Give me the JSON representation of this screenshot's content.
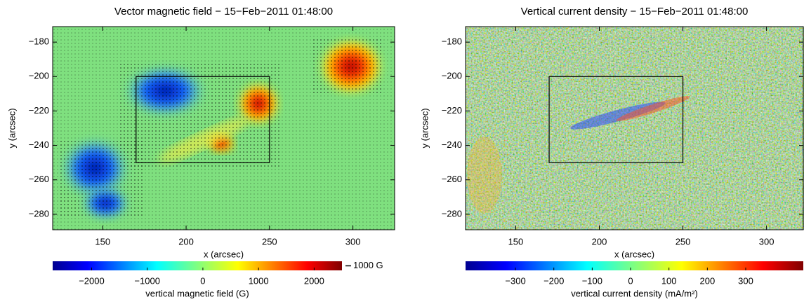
{
  "chart_data": [
    {
      "type": "image",
      "title": "Vector magnetic field − 15−Feb−2011 01:48:00",
      "xlabel": "x (arcsec)",
      "ylabel": "y (arcsec)",
      "xlim": [
        120,
        325
      ],
      "ylim": [
        -289,
        -171
      ],
      "xticks": [
        150,
        200,
        250,
        300
      ],
      "yticks": [
        {
          "value": -180,
          "label": "−180"
        },
        {
          "value": -200,
          "label": "−200"
        },
        {
          "value": -220,
          "label": "−220"
        },
        {
          "value": -240,
          "label": "−240"
        },
        {
          "value": -260,
          "label": "−260"
        },
        {
          "value": -280,
          "label": "−280"
        }
      ],
      "box": {
        "x": [
          170,
          250
        ],
        "y": [
          -250,
          -200
        ]
      },
      "colorbar": {
        "label": "vertical magnetic field (G)",
        "lim": [
          -2700,
          2500
        ],
        "ticks": [
          {
            "value": -2000,
            "label": "−2000"
          },
          {
            "value": -1000,
            "label": "−1000"
          },
          0,
          1000,
          2000
        ]
      },
      "arrow_scale": {
        "label": "1000 G"
      }
    },
    {
      "type": "image",
      "title": "Vertical current density − 15−Feb−2011 01:48:00",
      "xlabel": "x (arcsec)",
      "ylabel": "y (arcsec)",
      "xlim": [
        120,
        322
      ],
      "ylim": [
        -289,
        -171
      ],
      "xticks": [
        150,
        200,
        250,
        300
      ],
      "yticks": [
        {
          "value": -180,
          "label": "−180"
        },
        {
          "value": -200,
          "label": "−200"
        },
        {
          "value": -220,
          "label": "−220"
        },
        {
          "value": -240,
          "label": "−240"
        },
        {
          "value": -260,
          "label": "−260"
        },
        {
          "value": -280,
          "label": "−280"
        }
      ],
      "box": {
        "x": [
          170,
          250
        ],
        "y": [
          -250,
          -200
        ]
      },
      "colorbar": {
        "label": "vertical current density (mA/m²)",
        "lim": [
          -430,
          450
        ],
        "ticks": [
          {
            "value": -300,
            "label": "−300"
          },
          {
            "value": -200,
            "label": "−200"
          },
          {
            "value": -100,
            "label": "−100"
          },
          0,
          100,
          200,
          300
        ]
      }
    }
  ]
}
